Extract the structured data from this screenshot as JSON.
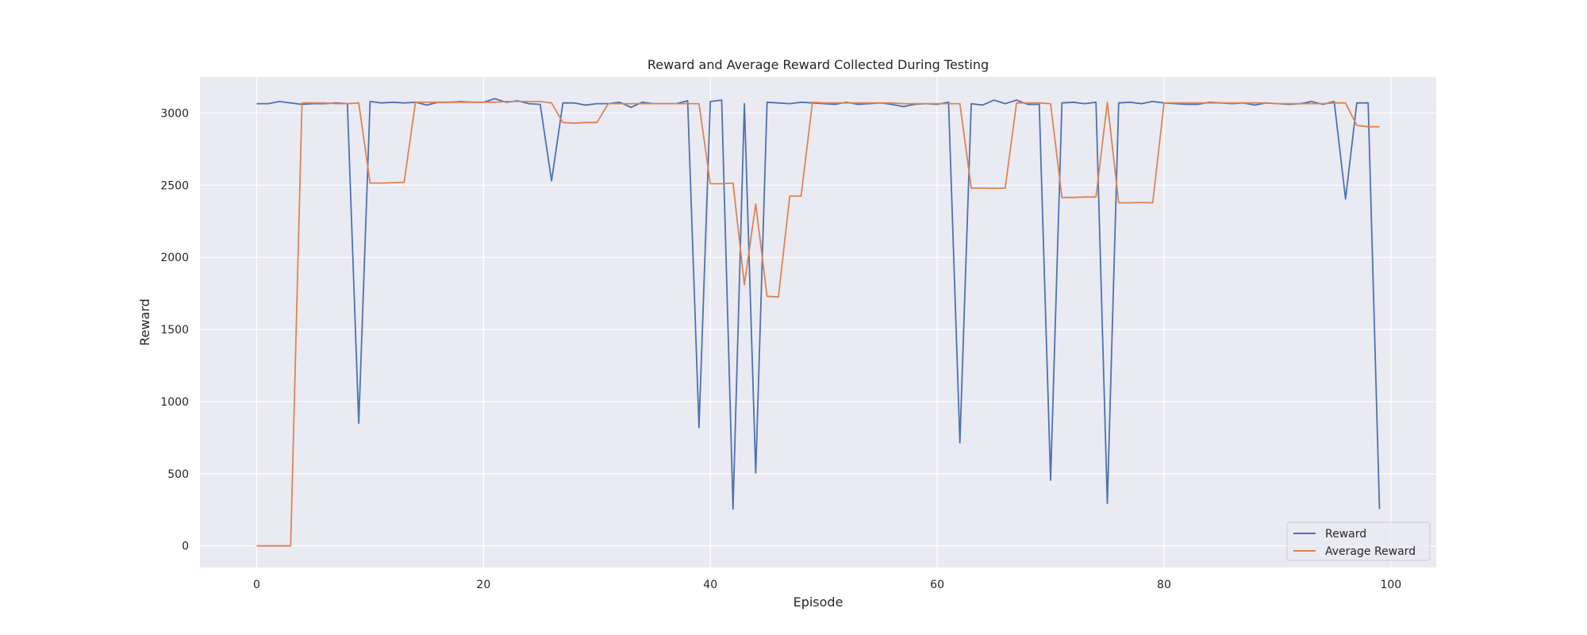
{
  "chart_data": {
    "type": "line",
    "title": "Reward and Average Reward Collected During Testing",
    "xlabel": "Episode",
    "ylabel": "Reward",
    "xlim": [
      -5,
      104
    ],
    "ylim": [
      -150,
      3250
    ],
    "xticks": [
      0,
      20,
      40,
      60,
      80,
      100
    ],
    "yticks": [
      0,
      500,
      1000,
      1500,
      2000,
      2500,
      3000
    ],
    "grid": true,
    "legend_position": "bottom-right",
    "x": [
      0,
      1,
      2,
      3,
      4,
      5,
      6,
      7,
      8,
      9,
      10,
      11,
      12,
      13,
      14,
      15,
      16,
      17,
      18,
      19,
      20,
      21,
      22,
      23,
      24,
      25,
      26,
      27,
      28,
      29,
      30,
      31,
      32,
      33,
      34,
      35,
      36,
      37,
      38,
      39,
      40,
      41,
      42,
      43,
      44,
      45,
      46,
      47,
      48,
      49,
      50,
      51,
      52,
      53,
      54,
      55,
      56,
      57,
      58,
      59,
      60,
      61,
      62,
      63,
      64,
      65,
      66,
      67,
      68,
      69,
      70,
      71,
      72,
      73,
      74,
      75,
      76,
      77,
      78,
      79,
      80,
      81,
      82,
      83,
      84,
      85,
      86,
      87,
      88,
      89,
      90,
      91,
      92,
      93,
      94,
      95,
      96,
      97,
      98,
      99
    ],
    "series": [
      {
        "name": "Reward",
        "color": "#4c72b0",
        "values": [
          3065,
          3065,
          3080,
          3070,
          3060,
          3065,
          3065,
          3070,
          3065,
          850,
          3080,
          3070,
          3075,
          3070,
          3075,
          3055,
          3075,
          3075,
          3080,
          3075,
          3075,
          3100,
          3075,
          3085,
          3065,
          3060,
          2530,
          3070,
          3070,
          3055,
          3065,
          3065,
          3075,
          3040,
          3075,
          3065,
          3065,
          3065,
          3085,
          820,
          3080,
          3090,
          255,
          3065,
          505,
          3075,
          3070,
          3065,
          3075,
          3070,
          3065,
          3060,
          3075,
          3060,
          3065,
          3070,
          3060,
          3045,
          3060,
          3065,
          3060,
          3075,
          715,
          3065,
          3055,
          3090,
          3065,
          3090,
          3060,
          3060,
          455,
          3070,
          3075,
          3065,
          3075,
          295,
          3070,
          3075,
          3065,
          3080,
          3070,
          3065,
          3060,
          3060,
          3075,
          3070,
          3065,
          3070,
          3055,
          3070,
          3065,
          3060,
          3065,
          3080,
          3060,
          3080,
          2405,
          3070,
          3070,
          255
        ]
      },
      {
        "name": "Average Reward",
        "color": "#dd8452",
        "values": [
          0,
          0,
          0,
          0,
          3070,
          3070,
          3070,
          3065,
          3065,
          3070,
          2515,
          2515,
          2518,
          2520,
          3075,
          3075,
          3075,
          3075,
          3075,
          3075,
          3075,
          3075,
          3080,
          3080,
          3080,
          3080,
          3070,
          2935,
          2930,
          2935,
          2935,
          3065,
          3065,
          3065,
          3065,
          3065,
          3065,
          3065,
          3065,
          3065,
          2510,
          2510,
          2515,
          1810,
          2370,
          1730,
          1725,
          2425,
          2425,
          3075,
          3070,
          3070,
          3070,
          3070,
          3070,
          3070,
          3070,
          3065,
          3065,
          3065,
          3065,
          3065,
          3065,
          2480,
          2480,
          2478,
          2480,
          3070,
          3070,
          3070,
          3065,
          2415,
          2415,
          2418,
          2418,
          3075,
          2378,
          2378,
          2380,
          2378,
          3070,
          3070,
          3070,
          3070,
          3070,
          3070,
          3070,
          3070,
          3070,
          3070,
          3065,
          3065,
          3065,
          3065,
          3065,
          3070,
          3070,
          2915,
          2905,
          2905
        ]
      }
    ]
  }
}
